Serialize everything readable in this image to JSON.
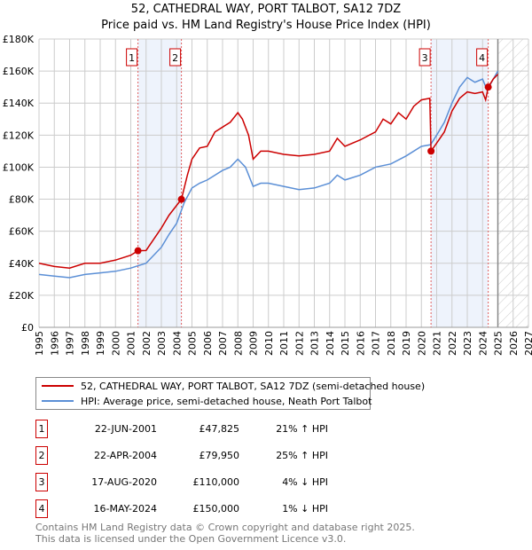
{
  "chart_data": {
    "type": "line",
    "title": "52, CATHEDRAL WAY, PORT TALBOT, SA12 7DZ",
    "subtitle": "Price paid vs. HM Land Registry's House Price Index (HPI)",
    "ylim": [
      0,
      180000
    ],
    "xlim": [
      1995,
      2027
    ],
    "yticks": [
      {
        "v": 0,
        "label": "£0"
      },
      {
        "v": 20000,
        "label": "£20K"
      },
      {
        "v": 40000,
        "label": "£40K"
      },
      {
        "v": 60000,
        "label": "£60K"
      },
      {
        "v": 80000,
        "label": "£80K"
      },
      {
        "v": 100000,
        "label": "£100K"
      },
      {
        "v": 120000,
        "label": "£120K"
      },
      {
        "v": 140000,
        "label": "£140K"
      },
      {
        "v": 160000,
        "label": "£160K"
      },
      {
        "v": 180000,
        "label": "£180K"
      }
    ],
    "xticks": [
      "1995",
      "1996",
      "1997",
      "1998",
      "1999",
      "2000",
      "2001",
      "2002",
      "2003",
      "2004",
      "2005",
      "2006",
      "2007",
      "2008",
      "2009",
      "2010",
      "2011",
      "2012",
      "2013",
      "2014",
      "2015",
      "2016",
      "2017",
      "2018",
      "2019",
      "2020",
      "2021",
      "2022",
      "2023",
      "2024",
      "2025",
      "2026",
      "2027"
    ],
    "forecast_start": 2025,
    "shaded": [
      [
        2001.47,
        2004.31
      ],
      [
        2020.63,
        2024.37
      ]
    ],
    "series": [
      {
        "name": "52, CATHEDRAL WAY, PORT TALBOT, SA12 7DZ (semi-detached house)",
        "color": "#cc0000",
        "x": [
          1995,
          1996,
          1997,
          1998,
          1999,
          2000,
          2001,
          2001.47,
          2002,
          2002.5,
          2003,
          2003.5,
          2004.31,
          2004.7,
          2005,
          2005.5,
          2006,
          2006.5,
          2007,
          2007.5,
          2008,
          2008.3,
          2008.7,
          2009,
          2009.5,
          2010,
          2011,
          2012,
          2013,
          2014,
          2014.5,
          2015,
          2016,
          2017,
          2017.5,
          2018,
          2018.5,
          2019,
          2019.5,
          2020,
          2020.55,
          2020.63,
          2021,
          2021.5,
          2022,
          2022.5,
          2023,
          2023.5,
          2024,
          2024.2,
          2024.37,
          2024.7,
          2025
        ],
        "y": [
          40000,
          38000,
          37000,
          40000,
          40000,
          42000,
          45000,
          47825,
          48000,
          55000,
          62000,
          70000,
          79950,
          95000,
          105000,
          112000,
          113000,
          122000,
          125000,
          128000,
          134000,
          130000,
          120000,
          105000,
          110000,
          110000,
          108000,
          107000,
          108000,
          110000,
          118000,
          113000,
          117000,
          122000,
          130000,
          127000,
          134000,
          130000,
          138000,
          142000,
          143000,
          110000,
          115000,
          122000,
          135000,
          143000,
          147000,
          146000,
          147000,
          142000,
          150000,
          155000,
          158000
        ]
      },
      {
        "name": "HPI: Average price, semi-detached house, Neath Port Talbot",
        "color": "#5b8fd6",
        "x": [
          1995,
          1996,
          1997,
          1998,
          1999,
          2000,
          2001,
          2002,
          2003,
          2003.5,
          2004,
          2004.5,
          2005,
          2005.5,
          2006,
          2006.5,
          2007,
          2007.5,
          2008,
          2008.5,
          2009,
          2009.5,
          2010,
          2011,
          2012,
          2013,
          2014,
          2014.5,
          2015,
          2016,
          2017,
          2018,
          2019,
          2020,
          2020.6,
          2021,
          2021.5,
          2022,
          2022.5,
          2023,
          2023.5,
          2024,
          2024.3,
          2024.7,
          2025
        ],
        "y": [
          33000,
          32000,
          31000,
          33000,
          34000,
          35000,
          37000,
          40000,
          50000,
          58000,
          65000,
          78000,
          87000,
          90000,
          92000,
          95000,
          98000,
          100000,
          105000,
          100000,
          88000,
          90000,
          90000,
          88000,
          86000,
          87000,
          90000,
          95000,
          92000,
          95000,
          100000,
          102000,
          107000,
          113000,
          114000,
          120000,
          128000,
          140000,
          150000,
          156000,
          153000,
          155000,
          148000,
          155000,
          160000
        ]
      }
    ],
    "sales": [
      {
        "label": "1",
        "x": 2001.47,
        "y": 47825
      },
      {
        "label": "2",
        "x": 2004.31,
        "y": 79950
      },
      {
        "label": "3",
        "x": 2020.63,
        "y": 110000
      },
      {
        "label": "4",
        "x": 2024.37,
        "y": 150000
      }
    ]
  },
  "legend": {
    "red": "52, CATHEDRAL WAY, PORT TALBOT, SA12 7DZ (semi-detached house)",
    "blue": "HPI: Average price, semi-detached house, Neath Port Talbot"
  },
  "transactions": [
    {
      "num": "1",
      "date": "22-JUN-2001",
      "price": "£47,825",
      "hpi": "21% ↑ HPI"
    },
    {
      "num": "2",
      "date": "22-APR-2004",
      "price": "£79,950",
      "hpi": "25% ↑ HPI"
    },
    {
      "num": "3",
      "date": "17-AUG-2020",
      "price": "£110,000",
      "hpi": "4% ↓ HPI"
    },
    {
      "num": "4",
      "date": "16-MAY-2024",
      "price": "£150,000",
      "hpi": "1% ↓ HPI"
    }
  ],
  "footer": {
    "line1": "Contains HM Land Registry data © Crown copyright and database right 2025.",
    "line2": "This data is licensed under the Open Government Licence v3.0."
  }
}
